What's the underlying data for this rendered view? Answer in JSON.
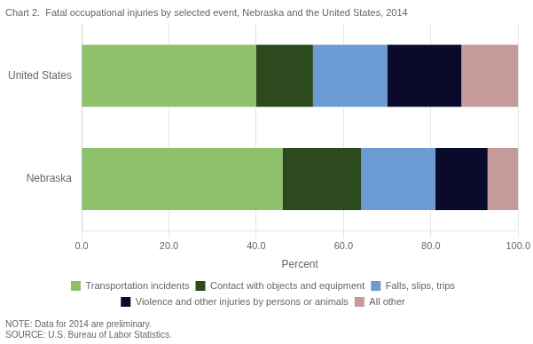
{
  "chart_data": {
    "type": "bar",
    "orientation": "horizontal",
    "stacked": true,
    "title": "Chart 2.  Fatal occupational injuries by selected event, Nebraska and the United States, 2014",
    "categories": [
      "United States",
      "Nebraska"
    ],
    "series": [
      {
        "name": "Transportation incidents",
        "color": "#8DC16A",
        "values": [
          40.0,
          46.0
        ]
      },
      {
        "name": "Contact with objects and equipment",
        "color": "#2D4A1E",
        "values": [
          13.0,
          18.0
        ]
      },
      {
        "name": "Falls, slips, trips",
        "color": "#6B9BD2",
        "values": [
          17.0,
          17.0
        ]
      },
      {
        "name": "Violence and other injuries by persons or animals",
        "color": "#0A0A2A",
        "values": [
          17.0,
          12.0
        ]
      },
      {
        "name": "All other",
        "color": "#C49A9A",
        "values": [
          13.0,
          7.0
        ]
      }
    ],
    "xlabel": "Percent",
    "xlim": [
      0,
      100
    ],
    "xticks": [
      {
        "value": 0,
        "label": "0.0"
      },
      {
        "value": 20,
        "label": "20.0"
      },
      {
        "value": 40,
        "label": "40.0"
      },
      {
        "value": 60,
        "label": "60.0"
      },
      {
        "value": 80,
        "label": "80.0"
      },
      {
        "value": 100,
        "label": "100.0"
      }
    ],
    "grid": true,
    "legend": "bottom",
    "annotations": [
      "NOTE: Data for 2014 are preliminary.",
      "SOURCE: U.S. Bureau of Labor Statistics."
    ]
  }
}
